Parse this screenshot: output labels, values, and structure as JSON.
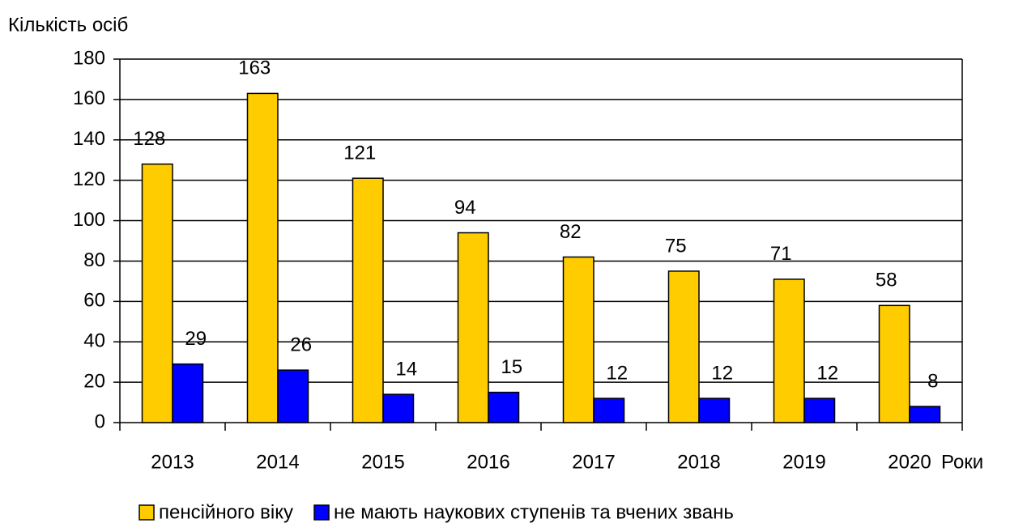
{
  "chart_data": {
    "type": "bar",
    "y_label": "Кількість осіб",
    "x_label": "Роки",
    "categories": [
      "2013",
      "2014",
      "2015",
      "2016",
      "2017",
      "2018",
      "2019",
      "2020"
    ],
    "series": [
      {
        "name": "пенсійного віку",
        "color": "#ffcc00",
        "values": [
          128,
          163,
          121,
          94,
          82,
          75,
          71,
          58
        ]
      },
      {
        "name": "не мають наукових ступенів та вчених звань",
        "color": "#0000ff",
        "values": [
          29,
          26,
          14,
          15,
          12,
          12,
          12,
          8
        ]
      }
    ],
    "ylim": [
      0,
      180
    ],
    "yticks": [
      0,
      20,
      40,
      60,
      80,
      100,
      120,
      140,
      160,
      180
    ],
    "grid": true,
    "legend": "bottom"
  }
}
